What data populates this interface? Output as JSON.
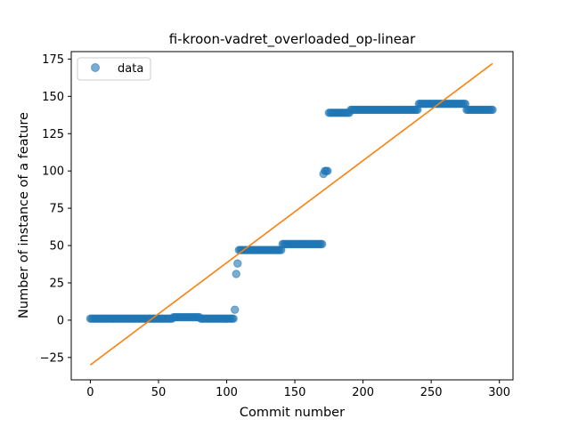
{
  "chart_data": {
    "type": "scatter",
    "title": "fi-kroon-vadret_overloaded_op-linear",
    "xlabel": "Commit number",
    "ylabel": "Number of instance of a feature",
    "xlim": [
      -14,
      310
    ],
    "ylim": [
      -40,
      180
    ],
    "xticks": [
      0,
      50,
      100,
      150,
      200,
      250,
      300
    ],
    "yticks": [
      -25,
      0,
      25,
      50,
      75,
      100,
      125,
      150,
      175
    ],
    "grid": false,
    "legend": {
      "position": "top-left",
      "entries": [
        "data"
      ]
    },
    "colors": {
      "data": "#1f77b4",
      "fit": "#ff7f0e"
    },
    "series": [
      {
        "name": "data",
        "kind": "scatter",
        "segments": [
          {
            "x_start": 0,
            "x_end": 60,
            "y": 1
          },
          {
            "x_start": 61,
            "x_end": 80,
            "y": 2
          },
          {
            "x_start": 81,
            "x_end": 105,
            "y": 1
          },
          {
            "x_start": 109,
            "x_end": 140,
            "y": 47
          },
          {
            "x_start": 141,
            "x_end": 170,
            "y": 51
          },
          {
            "x_start": 175,
            "x_end": 190,
            "y": 139
          },
          {
            "x_start": 191,
            "x_end": 240,
            "y": 141
          },
          {
            "x_start": 241,
            "x_end": 275,
            "y": 145
          },
          {
            "x_start": 276,
            "x_end": 295,
            "y": 141
          }
        ],
        "points": [
          {
            "x": 106,
            "y": 7
          },
          {
            "x": 107,
            "y": 31
          },
          {
            "x": 108,
            "y": 38
          },
          {
            "x": 171,
            "y": 98
          },
          {
            "x": 172,
            "y": 100
          },
          {
            "x": 173,
            "y": 100
          },
          {
            "x": 174,
            "y": 100
          }
        ]
      },
      {
        "kind": "line",
        "x": [
          0,
          295
        ],
        "values": [
          -30,
          172
        ]
      }
    ]
  }
}
